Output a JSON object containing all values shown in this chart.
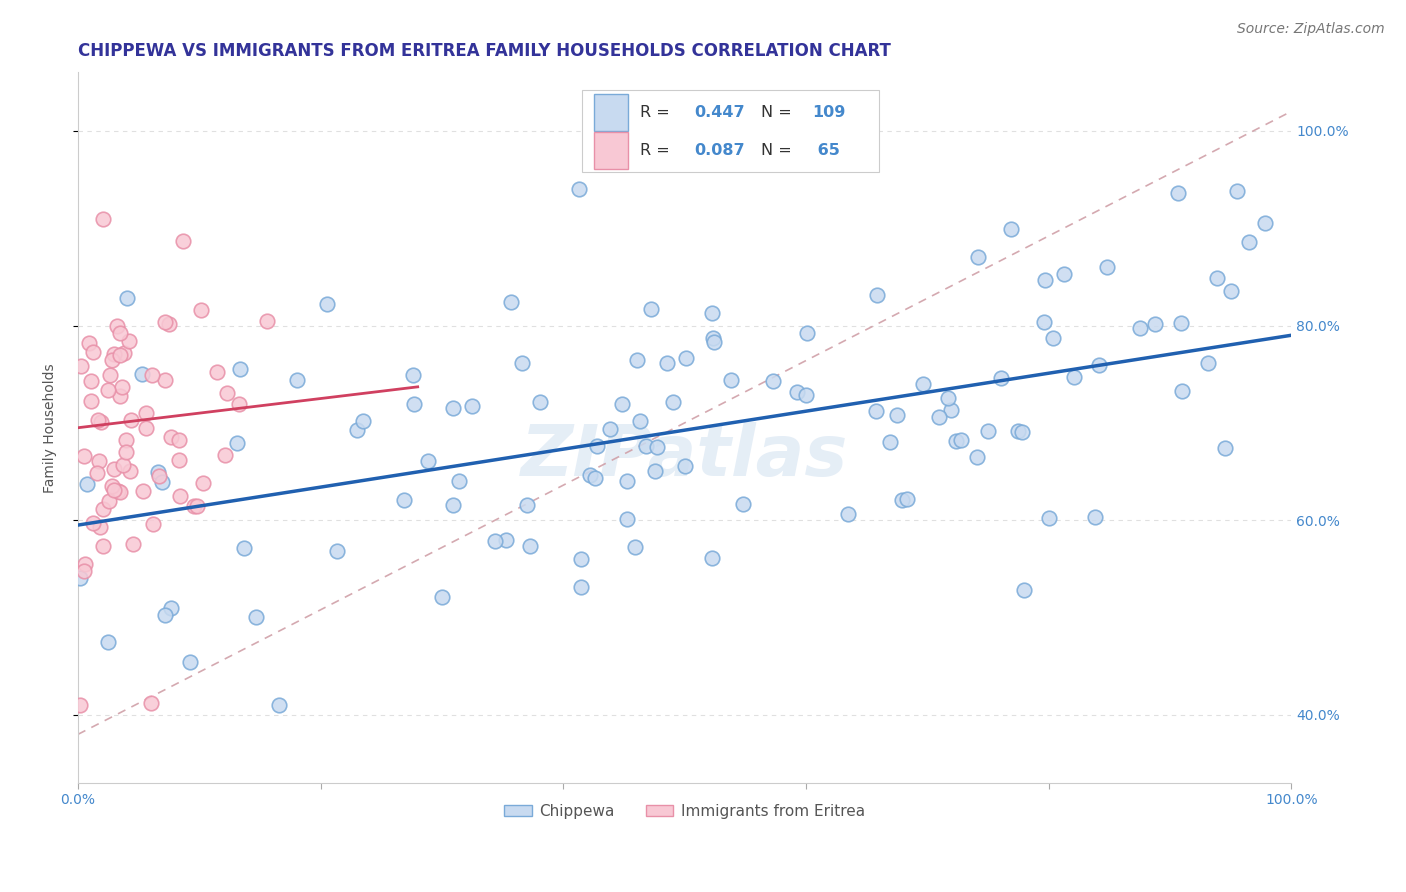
{
  "title": "CHIPPEWA VS IMMIGRANTS FROM ERITREA FAMILY HOUSEHOLDS CORRELATION CHART",
  "source": "Source: ZipAtlas.com",
  "ylabel": "Family Households",
  "watermark": "ZIPatlas",
  "legend_label1": "Chippewa",
  "legend_label2": "Immigrants from Eritrea",
  "blue_scatter_face": "#c8daf0",
  "blue_scatter_edge": "#7aaad8",
  "pink_scatter_face": "#f8c8d4",
  "pink_scatter_edge": "#e890a8",
  "blue_line_color": "#2060b0",
  "pink_line_color": "#d04060",
  "dashed_line_color": "#d0a0a8",
  "grid_color": "#e0e0e0",
  "tick_color": "#4488cc",
  "title_color": "#333399",
  "xlim": [
    0.0,
    1.0
  ],
  "ylim": [
    0.33,
    1.06
  ],
  "yticks": [
    0.4,
    0.6,
    0.8,
    1.0
  ],
  "title_fontsize": 12,
  "label_fontsize": 10,
  "tick_fontsize": 10,
  "source_fontsize": 10
}
